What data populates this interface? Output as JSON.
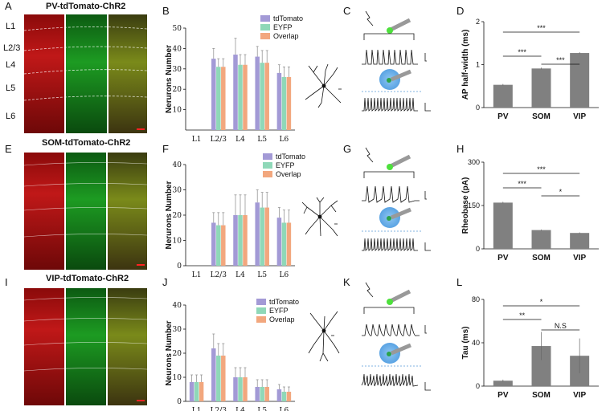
{
  "figure": {
    "panel_letters": [
      "A",
      "B",
      "C",
      "D",
      "E",
      "F",
      "G",
      "H",
      "I",
      "J",
      "K",
      "L"
    ],
    "rows": [
      {
        "title": "PV-tdTomato-ChR2",
        "layers": [
          "L1",
          "L2/3",
          "L4",
          "L5",
          "L6"
        ]
      },
      {
        "title": "SOM-tdTomato-ChR2"
      },
      {
        "title": "VIP-tdTomato-ChR2"
      }
    ],
    "colors": {
      "tdTomato": "#a39ad6",
      "EYFP": "#8fd8b8",
      "Overlap": "#f2a77e",
      "bar": "#808080"
    }
  },
  "chart_data": [
    {
      "panel": "B",
      "type": "bar",
      "ylabel": "Nerurons Number",
      "ylim": [
        0,
        50
      ],
      "yticks": [
        10,
        20,
        30,
        40,
        50
      ],
      "categories": [
        "L1",
        "L2/3",
        "L4",
        "L5",
        "L6"
      ],
      "series": [
        {
          "name": "tdTomato",
          "values": [
            0,
            35,
            37,
            36,
            28
          ],
          "errors": [
            0,
            5,
            8,
            5,
            4
          ]
        },
        {
          "name": "EYFP",
          "values": [
            0,
            31,
            32,
            33,
            26
          ],
          "errors": [
            0,
            4,
            5,
            6,
            5
          ]
        },
        {
          "name": "Overlap",
          "values": [
            0,
            31,
            32,
            33,
            26
          ],
          "errors": [
            0,
            4,
            5,
            6,
            5
          ]
        }
      ]
    },
    {
      "panel": "F",
      "type": "bar",
      "ylabel": "Nerurons Number",
      "ylim": [
        0,
        40
      ],
      "yticks": [
        0,
        10,
        20,
        30,
        40
      ],
      "categories": [
        "L1",
        "L2/3",
        "L4",
        "L5",
        "L6"
      ],
      "series": [
        {
          "name": "tdTomato",
          "values": [
            0,
            17,
            20,
            25,
            19
          ],
          "errors": [
            0,
            4,
            8,
            5,
            4
          ]
        },
        {
          "name": "EYFP",
          "values": [
            0,
            16,
            20,
            23,
            17
          ],
          "errors": [
            0,
            5,
            8,
            6,
            5
          ]
        },
        {
          "name": "Overlap",
          "values": [
            0,
            16,
            20,
            23,
            17
          ],
          "errors": [
            0,
            5,
            8,
            6,
            5
          ]
        }
      ]
    },
    {
      "panel": "J",
      "type": "bar",
      "ylabel": "Neurons Number",
      "ylim": [
        0,
        40
      ],
      "yticks": [
        0,
        10,
        20,
        30,
        40
      ],
      "categories": [
        "L1",
        "L2/3",
        "L4",
        "L5",
        "L6"
      ],
      "series": [
        {
          "name": "tdTomato",
          "values": [
            8,
            22,
            10,
            6,
            5
          ],
          "errors": [
            3,
            6,
            4,
            3,
            2
          ]
        },
        {
          "name": "EYFP",
          "values": [
            8,
            19,
            10,
            6,
            4
          ],
          "errors": [
            3,
            5,
            4,
            3,
            2
          ]
        },
        {
          "name": "Overlap",
          "values": [
            8,
            19,
            10,
            6,
            4
          ],
          "errors": [
            3,
            5,
            4,
            3,
            2
          ]
        }
      ]
    },
    {
      "panel": "D",
      "type": "bar",
      "ylabel": "AP half-width (ms)",
      "ylim": [
        0,
        2
      ],
      "yticks": [
        0,
        1,
        2
      ],
      "categories": [
        "PV",
        "SOM",
        "VIP"
      ],
      "values": [
        0.53,
        0.91,
        1.27
      ],
      "errors": [
        0.02,
        0.02,
        0.02
      ],
      "significance": [
        {
          "a": 0,
          "b": 2,
          "label": "***"
        },
        {
          "a": 0,
          "b": 1,
          "label": "***"
        },
        {
          "a": 1,
          "b": 2,
          "label": "***"
        }
      ]
    },
    {
      "panel": "H",
      "type": "bar",
      "ylabel": "Rheobase (pA)",
      "ylim": [
        0,
        300
      ],
      "yticks": [
        0,
        150,
        300
      ],
      "categories": [
        "PV",
        "SOM",
        "VIP"
      ],
      "values": [
        160,
        65,
        55
      ],
      "errors": [
        3,
        2,
        2
      ],
      "significance": [
        {
          "a": 0,
          "b": 2,
          "label": "***"
        },
        {
          "a": 0,
          "b": 1,
          "label": "***"
        },
        {
          "a": 1,
          "b": 2,
          "label": "*"
        }
      ]
    },
    {
      "panel": "L",
      "type": "bar",
      "ylabel": "Tau (ms)",
      "ylim": [
        0,
        80
      ],
      "yticks": [
        0,
        40,
        80
      ],
      "categories": [
        "PV",
        "SOM",
        "VIP"
      ],
      "values": [
        5,
        37,
        28
      ],
      "errors": [
        1,
        13,
        16
      ],
      "significance": [
        {
          "a": 0,
          "b": 2,
          "label": "*"
        },
        {
          "a": 0,
          "b": 1,
          "label": "**"
        },
        {
          "a": 1,
          "b": 2,
          "label": "N.S"
        }
      ]
    }
  ]
}
